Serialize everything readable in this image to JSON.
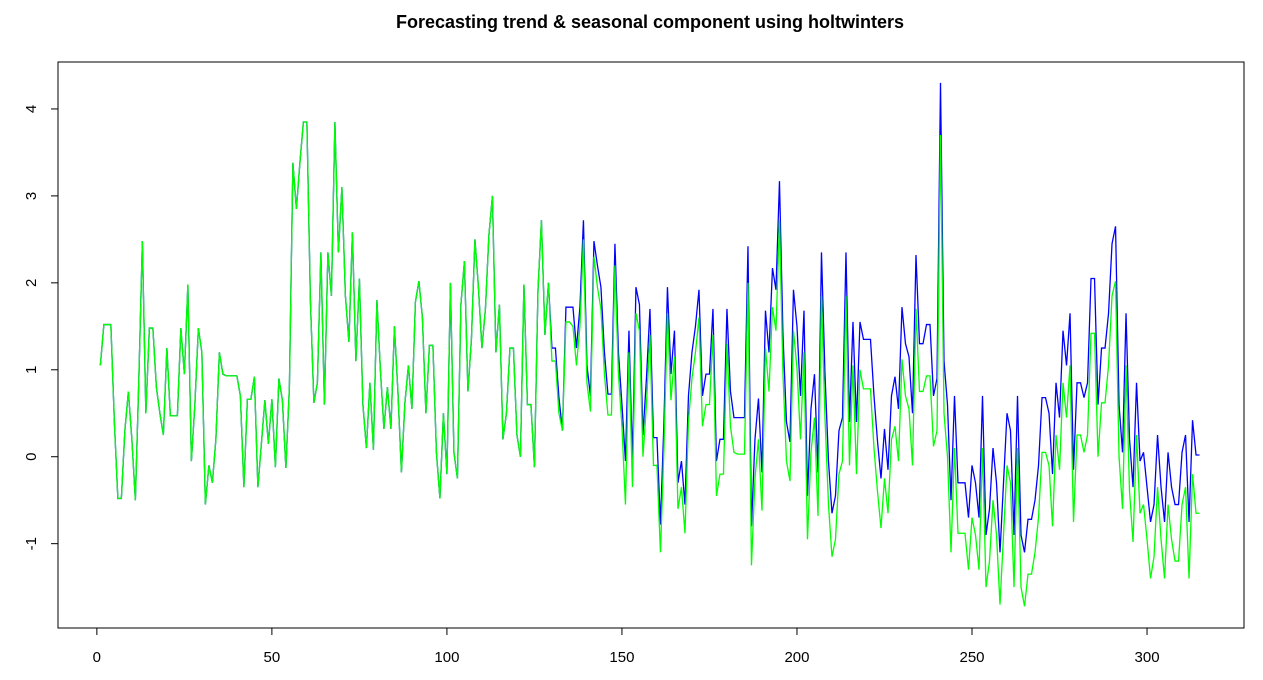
{
  "chart_data": {
    "type": "line",
    "title": "Forecasting trend & seasonal component using holtwinters",
    "x": [
      1,
      2,
      3,
      4,
      5,
      6,
      7,
      8,
      9,
      10,
      11,
      12,
      13,
      14,
      15,
      16,
      17,
      18,
      19,
      20,
      21,
      22,
      23,
      24,
      25,
      26,
      27,
      28,
      29,
      30,
      31,
      32,
      33,
      34,
      35,
      36,
      37,
      38,
      39,
      40,
      41,
      42,
      43,
      44,
      45,
      46,
      47,
      48,
      49,
      50,
      51,
      52,
      53,
      54,
      55,
      56,
      57,
      58,
      59,
      60,
      61,
      62,
      63,
      64,
      65,
      66,
      67,
      68,
      69,
      70,
      71,
      72,
      73,
      74,
      75,
      76,
      77,
      78,
      79,
      80,
      81,
      82,
      83,
      84,
      85,
      86,
      87,
      88,
      89,
      90,
      91,
      92,
      93,
      94,
      95,
      96,
      97,
      98,
      99,
      100,
      101,
      102,
      103,
      104,
      105,
      106,
      107,
      108,
      109,
      110,
      111,
      112,
      113,
      114,
      115,
      116,
      117,
      118,
      119,
      120,
      121,
      122,
      123,
      124,
      125,
      126,
      127,
      128,
      129,
      130,
      131,
      132,
      133,
      134,
      135,
      136,
      137,
      138,
      139,
      140,
      141,
      142,
      143,
      144,
      145,
      146,
      147,
      148,
      149,
      150,
      151,
      152,
      153,
      154,
      155,
      156,
      157,
      158,
      159,
      160,
      161,
      162,
      163,
      164,
      165,
      166,
      167,
      168,
      169,
      170,
      171,
      172,
      173,
      174,
      175,
      176,
      177,
      178,
      179,
      180,
      181,
      182,
      183,
      184,
      185,
      186,
      187,
      188,
      189,
      190,
      191,
      192,
      193,
      194,
      195,
      196,
      197,
      198,
      199,
      200,
      201,
      202,
      203,
      204,
      205,
      206,
      207,
      208,
      209,
      210,
      211,
      212,
      213,
      214,
      215,
      216,
      217,
      218,
      219,
      220,
      221,
      222,
      223,
      224,
      225,
      226,
      227,
      228,
      229,
      230,
      231,
      232,
      233,
      234,
      235,
      236,
      237,
      238,
      239,
      240,
      241,
      242,
      243,
      244,
      245,
      246,
      247,
      248,
      249,
      250,
      251,
      252,
      253,
      254,
      255,
      256,
      257,
      258,
      259,
      260,
      261,
      262,
      263,
      264,
      265,
      266,
      267,
      268,
      269,
      270,
      271,
      272,
      273,
      274,
      275,
      276,
      277,
      278,
      279,
      280,
      281,
      282,
      283,
      284,
      285,
      286,
      287,
      288,
      289,
      290,
      291,
      292,
      293,
      294,
      295,
      296,
      297,
      298,
      299,
      300,
      301,
      302,
      303,
      304,
      305,
      306,
      307,
      308,
      309,
      310,
      311,
      312,
      313,
      314,
      315
    ],
    "series": [
      {
        "color": "#0000ff",
        "values": [
          1.05,
          1.52,
          1.52,
          1.52,
          0.4,
          -0.48,
          -0.48,
          0.3,
          0.75,
          0.2,
          -0.5,
          0.9,
          2.48,
          0.5,
          1.48,
          1.48,
          0.8,
          0.5,
          0.25,
          1.25,
          0.47,
          0.47,
          0.47,
          1.48,
          0.95,
          1.98,
          -0.05,
          0.6,
          1.48,
          1.2,
          -0.55,
          -0.1,
          -0.3,
          0.2,
          1.2,
          0.95,
          0.93,
          0.93,
          0.93,
          0.93,
          0.7,
          -0.35,
          0.66,
          0.66,
          0.92,
          -0.35,
          0.15,
          0.65,
          0.15,
          0.66,
          -0.12,
          0.9,
          0.65,
          -0.13,
          0.8,
          3.38,
          2.85,
          3.38,
          3.85,
          3.85,
          1.8,
          0.62,
          0.85,
          2.35,
          0.6,
          2.35,
          1.85,
          3.85,
          2.35,
          3.1,
          1.85,
          1.32,
          2.58,
          1.1,
          2.05,
          0.6,
          0.1,
          0.85,
          0.08,
          1.8,
          1.0,
          0.32,
          0.8,
          0.32,
          1.5,
          0.75,
          -0.18,
          0.62,
          1.05,
          0.55,
          1.78,
          2.02,
          1.6,
          0.5,
          1.28,
          1.28,
          0.05,
          -0.48,
          0.5,
          -0.2,
          2.0,
          0.05,
          -0.25,
          1.75,
          2.25,
          0.75,
          1.35,
          2.5,
          1.95,
          1.25,
          1.7,
          2.55,
          3.0,
          1.2,
          1.75,
          0.2,
          0.5,
          1.25,
          1.25,
          0.25,
          0.0,
          1.98,
          0.6,
          0.6,
          -0.12,
          1.9,
          2.72,
          1.4,
          2.0,
          1.25,
          1.25,
          0.68,
          0.3,
          1.72,
          1.72,
          1.72,
          1.25,
          1.72,
          2.72,
          1.05,
          0.7,
          2.48,
          2.2,
          1.95,
          1.2,
          0.72,
          0.72,
          2.45,
          1.2,
          0.6,
          -0.05,
          1.45,
          -0.05,
          1.95,
          1.75,
          0.25,
          0.9,
          1.7,
          0.22,
          0.22,
          -0.78,
          0.4,
          1.95,
          0.95,
          1.45,
          -0.3,
          -0.05,
          -0.55,
          0.7,
          1.2,
          1.5,
          1.92,
          0.7,
          0.95,
          0.95,
          1.7,
          -0.05,
          0.2,
          0.2,
          1.7,
          0.75,
          0.45,
          0.45,
          0.45,
          0.45,
          2.42,
          -0.8,
          0.2,
          0.67,
          -0.18,
          1.68,
          1.2,
          2.17,
          1.92,
          3.17,
          1.4,
          0.4,
          0.17,
          1.92,
          1.5,
          0.7,
          1.68,
          -0.45,
          0.55,
          0.95,
          -0.18,
          2.35,
          0.95,
          -0.05,
          -0.65,
          -0.45,
          0.3,
          0.45,
          2.35,
          0.4,
          1.55,
          0.4,
          1.55,
          1.35,
          1.35,
          1.35,
          0.7,
          0.18,
          -0.25,
          0.32,
          -0.15,
          0.7,
          0.92,
          0.55,
          1.72,
          1.3,
          1.15,
          0.5,
          2.32,
          1.3,
          1.3,
          1.52,
          1.52,
          0.7,
          0.9,
          4.3,
          1.1,
          0.6,
          -0.5,
          0.7,
          -0.3,
          -0.3,
          -0.3,
          -0.7,
          -0.1,
          -0.3,
          -0.7,
          0.7,
          -0.9,
          -0.6,
          0.1,
          -0.3,
          -1.1,
          -0.3,
          0.5,
          0.3,
          -0.9,
          0.7,
          -0.9,
          -1.1,
          -0.72,
          -0.72,
          -0.5,
          -0.1,
          0.68,
          0.68,
          0.5,
          -0.2,
          0.85,
          0.45,
          1.45,
          1.05,
          1.65,
          -0.15,
          0.85,
          0.85,
          0.68,
          0.85,
          2.05,
          2.05,
          0.6,
          1.25,
          1.25,
          1.65,
          2.45,
          2.65,
          0.6,
          0.05,
          1.65,
          0.2,
          -0.35,
          0.85,
          -0.05,
          0.05,
          -0.35,
          -0.75,
          -0.55,
          0.25,
          -0.35,
          -0.75,
          0.05,
          -0.35,
          -0.55,
          -0.55,
          0.05,
          0.25,
          -0.75,
          0.42,
          0.02,
          0.02
        ]
      },
      {
        "color": "#00ff00",
        "values": [
          1.05,
          1.52,
          1.52,
          1.52,
          0.4,
          -0.48,
          -0.48,
          0.3,
          0.75,
          0.2,
          -0.5,
          0.9,
          2.48,
          0.5,
          1.48,
          1.48,
          0.8,
          0.5,
          0.25,
          1.25,
          0.47,
          0.47,
          0.47,
          1.48,
          0.95,
          1.98,
          -0.05,
          0.6,
          1.48,
          1.2,
          -0.55,
          -0.1,
          -0.3,
          0.2,
          1.2,
          0.95,
          0.93,
          0.93,
          0.93,
          0.93,
          0.7,
          -0.35,
          0.66,
          0.66,
          0.92,
          -0.35,
          0.15,
          0.65,
          0.15,
          0.66,
          -0.12,
          0.9,
          0.65,
          -0.13,
          0.8,
          3.38,
          2.85,
          3.38,
          3.85,
          3.85,
          1.8,
          0.62,
          0.85,
          2.35,
          0.6,
          2.35,
          1.85,
          3.85,
          2.35,
          3.1,
          1.85,
          1.32,
          2.58,
          1.1,
          2.05,
          0.6,
          0.1,
          0.85,
          0.08,
          1.8,
          1.0,
          0.32,
          0.8,
          0.32,
          1.5,
          0.75,
          -0.18,
          0.62,
          1.05,
          0.55,
          1.78,
          2.02,
          1.6,
          0.5,
          1.28,
          1.28,
          0.05,
          -0.48,
          0.5,
          -0.2,
          2.0,
          0.05,
          -0.25,
          1.75,
          2.25,
          0.75,
          1.35,
          2.5,
          1.95,
          1.25,
          1.7,
          2.55,
          3.0,
          1.2,
          1.75,
          0.2,
          0.5,
          1.25,
          1.25,
          0.25,
          0.0,
          1.98,
          0.6,
          0.6,
          -0.12,
          1.9,
          2.72,
          1.4,
          2.0,
          1.1,
          1.1,
          0.5,
          0.3,
          1.55,
          1.55,
          1.5,
          1.05,
          1.5,
          2.5,
          0.85,
          0.52,
          2.3,
          1.95,
          1.7,
          0.95,
          0.48,
          0.48,
          2.2,
          0.95,
          0.35,
          -0.55,
          1.2,
          -0.35,
          1.65,
          1.45,
          0.0,
          0.6,
          1.4,
          -0.1,
          -0.1,
          -1.1,
          0.1,
          1.65,
          0.65,
          1.15,
          -0.6,
          -0.35,
          -0.88,
          0.4,
          0.9,
          1.2,
          1.6,
          0.35,
          0.6,
          0.6,
          1.4,
          -0.45,
          -0.2,
          -0.2,
          1.3,
          0.35,
          0.05,
          0.03,
          0.03,
          0.03,
          2.0,
          -1.25,
          -0.25,
          0.2,
          -0.62,
          1.25,
          0.75,
          1.72,
          1.45,
          2.72,
          0.95,
          -0.05,
          -0.28,
          1.45,
          1.02,
          0.2,
          1.2,
          -0.95,
          0.05,
          0.45,
          -0.68,
          1.85,
          0.45,
          -0.55,
          -1.15,
          -0.95,
          -0.2,
          -0.05,
          1.85,
          -0.1,
          1.05,
          -0.2,
          1.0,
          0.78,
          0.78,
          0.78,
          0.1,
          -0.4,
          -0.82,
          -0.25,
          -0.65,
          0.2,
          0.35,
          -0.05,
          1.12,
          0.7,
          0.55,
          -0.1,
          1.7,
          0.75,
          0.75,
          0.93,
          0.93,
          0.12,
          0.3,
          3.7,
          0.5,
          0.0,
          -1.1,
          0.1,
          -0.88,
          -0.88,
          -0.88,
          -1.3,
          -0.7,
          -0.9,
          -1.3,
          0.1,
          -1.5,
          -1.2,
          -0.5,
          -0.9,
          -1.7,
          -0.9,
          -0.1,
          -0.3,
          -1.5,
          0.1,
          -1.5,
          -1.72,
          -1.35,
          -1.35,
          -1.1,
          -0.7,
          0.05,
          0.05,
          -0.1,
          -0.8,
          0.25,
          -0.15,
          0.85,
          0.45,
          1.05,
          -0.75,
          0.25,
          0.25,
          0.05,
          0.25,
          1.42,
          1.42,
          0.0,
          0.62,
          0.62,
          1.05,
          1.85,
          2.02,
          0.0,
          -0.6,
          1.05,
          -0.4,
          -0.98,
          0.25,
          -0.65,
          -0.55,
          -0.95,
          -1.4,
          -1.15,
          -0.35,
          -0.95,
          -1.4,
          -0.55,
          -0.95,
          -1.2,
          -1.2,
          -0.55,
          -0.35,
          -1.4,
          -0.2,
          -0.65,
          -0.65
        ]
      }
    ],
    "xlim": [
      -11.1,
      327.7
    ],
    "xticks": [
      0,
      50,
      100,
      150,
      200,
      250,
      300
    ],
    "ylim": [
      -1.97,
      4.54
    ],
    "yticks": [
      -1,
      0,
      1,
      2,
      3,
      4
    ]
  }
}
